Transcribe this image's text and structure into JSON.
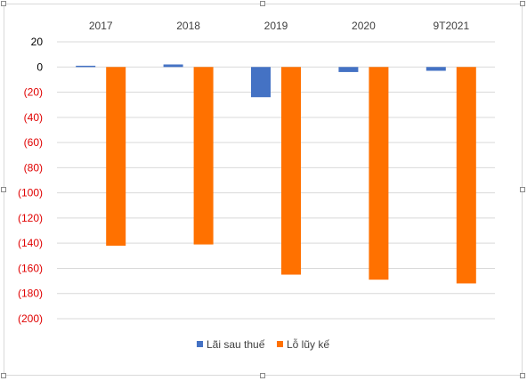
{
  "chart_data": {
    "type": "bar",
    "categories": [
      "2017",
      "2018",
      "2019",
      "2020",
      "9T2021"
    ],
    "series": [
      {
        "name": "Lãi sau thuế",
        "color": "#4472c4",
        "values": [
          1,
          2,
          -24,
          -4,
          -3
        ]
      },
      {
        "name": "Lỗ lũy kế",
        "color": "#ff7100",
        "values": [
          -142,
          -141,
          -165,
          -169,
          -172
        ]
      }
    ],
    "ylim": [
      -200,
      20
    ],
    "yticks": [
      20,
      0,
      -20,
      -40,
      -60,
      -80,
      -100,
      -120,
      -140,
      -160,
      -180,
      -200
    ],
    "ytick_labels": [
      "20",
      "0",
      "(20)",
      "(40)",
      "(60)",
      "(80)",
      "(100)",
      "(120)",
      "(140)",
      "(160)",
      "(180)",
      "(200)"
    ],
    "tick_colors": {
      "positive": "#000000",
      "negative": "#e00000"
    },
    "xaxis_position": "top",
    "grid": true,
    "legend": "bottom"
  }
}
